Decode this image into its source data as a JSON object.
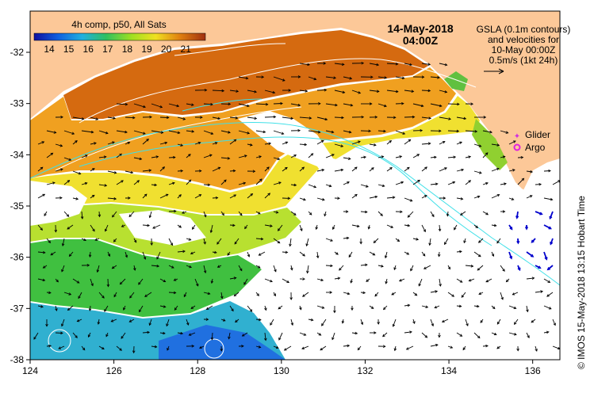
{
  "map": {
    "composite_label": "4h comp, p50, All Sats",
    "date_line": "14-May-2018",
    "time_line": "04:00Z",
    "gsla_note": [
      "GSLA (0.1m contours)",
      "and velocities for",
      "10-May 00:00Z",
      "0.5m/s (1kt 24h)"
    ],
    "legend": {
      "glider": "Glider",
      "argo": "Argo"
    },
    "credit": "© IMOS 15-May-2018 13:15 Hobart Time",
    "colorbar_ticks": [
      "14",
      "15",
      "16",
      "17",
      "18",
      "19",
      "20",
      "21"
    ],
    "x_ticks": [
      "124",
      "126",
      "128",
      "130",
      "132",
      "134",
      "136"
    ],
    "y_ticks": [
      "-32",
      "-33",
      "-34",
      "-35",
      "-36",
      "-37",
      "-38"
    ],
    "colors": {
      "land": "#fcc898",
      "cloud": "#ffffff",
      "contour": "#40e0e8",
      "glider": "#d030e0",
      "argo": "#e020e0",
      "velocity": "#000000",
      "velocity_alt": "#0000cc"
    }
  }
}
